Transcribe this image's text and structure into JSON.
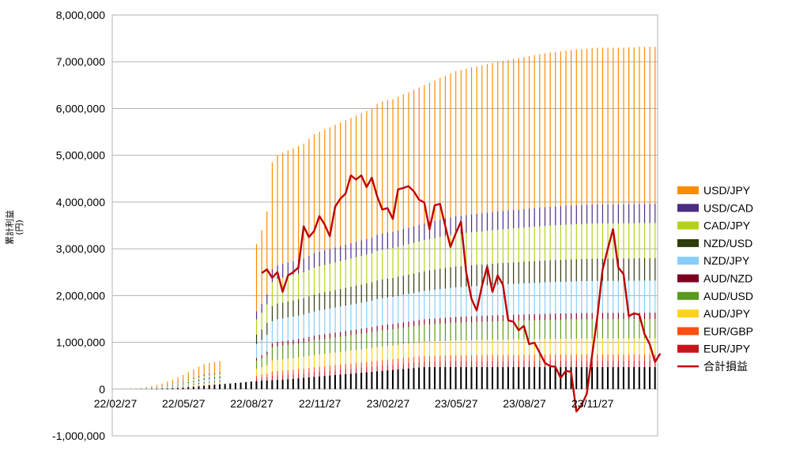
{
  "chart_data": {
    "type": "bar",
    "ylabel": "累計利益\n(円)",
    "ylim": [
      -1000000,
      8000000
    ],
    "y_ticks": [
      "-1,000,000",
      "0",
      "1,000,000",
      "2,000,000",
      "3,000,000",
      "4,000,000",
      "5,000,000",
      "6,000,000",
      "7,000,000",
      "8,000,000"
    ],
    "y_tick_values": [
      -1000000,
      0,
      1000000,
      2000000,
      3000000,
      4000000,
      5000000,
      6000000,
      7000000,
      8000000
    ],
    "x_ticks": [
      "22/02/27",
      "22/05/27",
      "22/08/27",
      "22/11/27",
      "23/02/27",
      "23/05/27",
      "23/08/27",
      "23/11/27"
    ],
    "x_tick_index": [
      0,
      13,
      26,
      39,
      52,
      65,
      78,
      91
    ],
    "grid": true,
    "legend_position": "right",
    "stacked_series": [
      {
        "name": "USD/JPY",
        "color": "#FF8C00"
      },
      {
        "name": "USD/CAD",
        "color": "#4B2C83"
      },
      {
        "name": "CAD/JPY",
        "color": "#B5D21A"
      },
      {
        "name": "NZD/USD",
        "color": "#2E3B0A"
      },
      {
        "name": "NZD/JPY",
        "color": "#87CEFA"
      },
      {
        "name": "AUD/NZD",
        "color": "#7B0020"
      },
      {
        "name": "AUD/USD",
        "color": "#5A9A1E"
      },
      {
        "name": "AUD/JPY",
        "color": "#FFD21E"
      },
      {
        "name": "EUR/GBP",
        "color": "#FF4E11"
      },
      {
        "name": "EUR/JPY",
        "color": "#C8141E"
      }
    ],
    "x_count": 104,
    "stack_order_bottom_to_top": [
      "EUR/JPY",
      "EUR/GBP",
      "AUD/JPY",
      "AUD/USD",
      "AUD/NZD",
      "NZD/JPY",
      "NZD/USD",
      "CAD/JPY",
      "USD/CAD",
      "USD/JPY"
    ],
    "black_base": [
      0,
      0,
      0,
      1000,
      2000,
      4000,
      6000,
      8000,
      10000,
      12000,
      15000,
      20000,
      25000,
      30000,
      40000,
      50000,
      60000,
      70000,
      80000,
      90000,
      100000,
      110000,
      120000,
      130000,
      140000,
      150000,
      160000,
      170000,
      180000,
      185000,
      190000,
      195000,
      200000,
      210000,
      220000,
      230000,
      240000,
      250000,
      260000,
      270000,
      280000,
      290000,
      300000,
      310000,
      320000,
      330000,
      340000,
      350000,
      360000,
      370000,
      380000,
      390000,
      400000,
      410000,
      420000,
      430000,
      440000,
      450000,
      460000,
      470000,
      470000,
      470000,
      470000,
      470000,
      470000,
      470000,
      470000,
      470000,
      470000,
      470000,
      470000,
      470000,
      470000,
      470000,
      470000,
      470000,
      470000,
      470000,
      470000,
      470000,
      470000,
      470000,
      470000,
      470000,
      470000,
      470000,
      470000,
      470000,
      470000,
      470000,
      470000,
      470000,
      470000,
      470000,
      470000,
      470000,
      470000,
      470000,
      470000,
      470000,
      470000,
      470000,
      470000,
      470000
    ],
    "stack_totals": [
      0,
      5000,
      10000,
      15000,
      20000,
      30000,
      50000,
      70000,
      90000,
      120000,
      160000,
      200000,
      250000,
      300000,
      360000,
      420000,
      480000,
      540000,
      560000,
      580000,
      600000,
      0,
      0,
      0,
      0,
      0,
      0,
      3100000,
      3400000,
      3800000,
      4850000,
      5000000,
      5050000,
      5100000,
      5150000,
      5200000,
      5250000,
      5350000,
      5450000,
      5500000,
      5550000,
      5600000,
      5650000,
      5700000,
      5750000,
      5800000,
      5850000,
      5900000,
      5950000,
      6000000,
      6100000,
      6150000,
      6180000,
      6200000,
      6250000,
      6300000,
      6350000,
      6400000,
      6450000,
      6500000,
      6550000,
      6600000,
      6650000,
      6700000,
      6750000,
      6800000,
      6820000,
      6850000,
      6880000,
      6900000,
      6920000,
      6950000,
      6970000,
      7000000,
      7020000,
      7040000,
      7060000,
      7080000,
      7100000,
      7120000,
      7140000,
      7160000,
      7180000,
      7200000,
      7210000,
      7220000,
      7240000,
      7250000,
      7260000,
      7270000,
      7280000,
      7290000,
      7300000,
      7300000,
      7300000,
      7300000,
      7300000,
      7300000,
      7310000,
      7310000,
      7320000,
      7320000,
      7320000,
      7320000
    ],
    "line_series": {
      "name": "合計損益",
      "color": "#C00000",
      "start_index": 28,
      "values": [
        2480000,
        2560000,
        2380000,
        2500000,
        2080000,
        2430000,
        2500000,
        2600000,
        3480000,
        3250000,
        3380000,
        3700000,
        3520000,
        3270000,
        3900000,
        4070000,
        4180000,
        4570000,
        4480000,
        4570000,
        4320000,
        4520000,
        4130000,
        3840000,
        3870000,
        3640000,
        4270000,
        4300000,
        4340000,
        4230000,
        4050000,
        3990000,
        3420000,
        3930000,
        3960000,
        3490000,
        3040000,
        3330000,
        3580000,
        2500000,
        1930000,
        1680000,
        2200000,
        2620000,
        2080000,
        2430000,
        2230000,
        1470000,
        1440000,
        1260000,
        1350000,
        960000,
        990000,
        780000,
        560000,
        490000,
        480000,
        240000,
        390000,
        370000,
        -480000,
        -340000,
        -100000,
        730000,
        1540000,
        2550000,
        3000000,
        3420000,
        2600000,
        2460000,
        1560000,
        1620000,
        1590000,
        1180000,
        960000,
        580000,
        760000
      ]
    }
  }
}
